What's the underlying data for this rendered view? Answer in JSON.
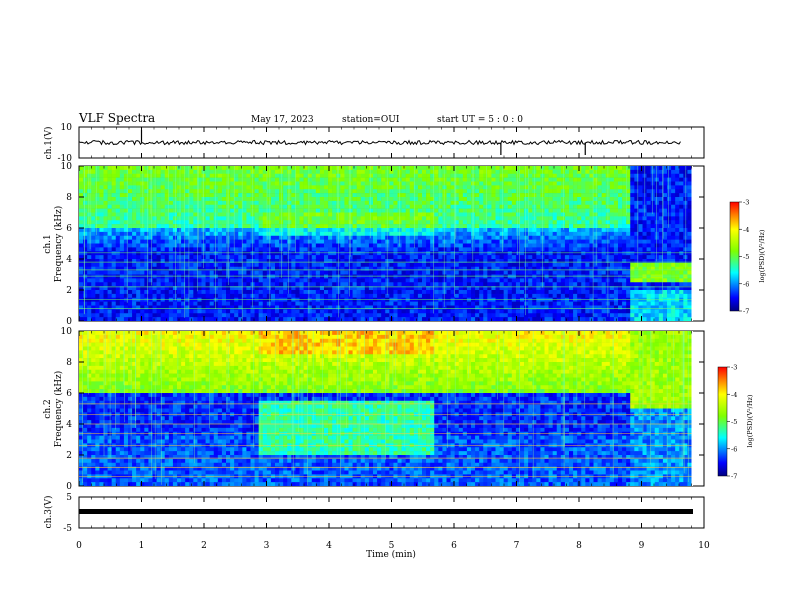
{
  "header": {
    "title": "VLF Spectra",
    "date": "May 17, 2023",
    "station": "station=OUI",
    "start": "start  UT =  5 : 0  : 0"
  },
  "chart_data": {
    "type": "heatmap",
    "x_axis": {
      "label": "Time  (min)",
      "range": [
        0,
        10
      ],
      "ticks": [
        "0",
        "1",
        "2",
        "3",
        "4",
        "5",
        "6",
        "7",
        "8",
        "9",
        "10"
      ],
      "data_end_min": 9.8
    },
    "panels": [
      {
        "kind": "waveform",
        "ylabel": "ch.1(V)",
        "yrange": [
          -10,
          10
        ],
        "ticks": [
          "10",
          "-10"
        ],
        "level": 0,
        "spikes_min": [
          1.0,
          6.75,
          8.1
        ]
      },
      {
        "kind": "spectrogram",
        "ylabel_channel": "ch.1",
        "ylabel": "Frequency  (kHz)",
        "yrange": [
          0,
          10
        ],
        "ticks": [
          "0",
          "2",
          "4",
          "6",
          "8",
          "10"
        ],
        "colorbar": {
          "label": "log(PSD)(V²/Hz)",
          "range": [
            -7,
            -3
          ],
          "ticks": [
            "-3",
            "-4",
            "-5",
            "-6",
            "-7"
          ]
        },
        "segments_min": [
          [
            0,
            2.9
          ],
          [
            2.9,
            5.7
          ],
          [
            5.7,
            8.85
          ],
          [
            8.85,
            9.8
          ]
        ]
      },
      {
        "kind": "spectrogram",
        "ylabel_channel": "ch.2",
        "ylabel": "Frequency  (kHz)",
        "yrange": [
          0,
          10
        ],
        "ticks": [
          "0",
          "2",
          "4",
          "6",
          "8",
          "10"
        ],
        "colorbar": {
          "label": "log(PSD)(V²/Hz)",
          "range": [
            -7,
            -3
          ],
          "ticks": [
            "-3",
            "-4",
            "-5",
            "-6",
            "-7"
          ]
        },
        "segments_min": [
          [
            0,
            2.9
          ],
          [
            2.9,
            5.7
          ],
          [
            5.7,
            8.85
          ],
          [
            8.85,
            9.8
          ]
        ]
      },
      {
        "kind": "waveform",
        "ylabel": "ch.3(V)",
        "yrange": [
          -5,
          5
        ],
        "ticks": [
          "5",
          "-5"
        ],
        "level": 0
      }
    ]
  },
  "colors": {
    "low": "#00008c",
    "mid": "#00ff00",
    "high": "#ff0000",
    "trace": "#000000"
  }
}
